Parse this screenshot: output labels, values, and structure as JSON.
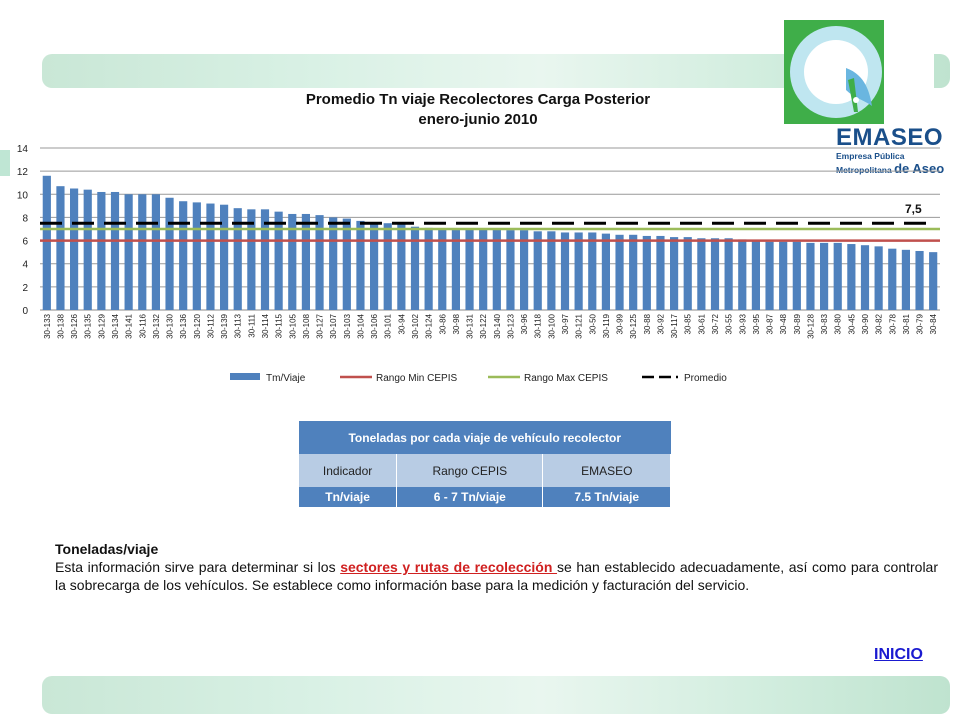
{
  "logo": {
    "name": "EMASEO",
    "sub1": "Empresa Pública",
    "sub2a": "Metropolitana",
    "sub2b": "de Aseo"
  },
  "chart_data": {
    "type": "bar",
    "title": "Promedio Tn viaje Recolectores Carga Posterior",
    "subtitle": "enero-junio 2010",
    "ylim": [
      0,
      14
    ],
    "yticks": [
      0,
      2,
      4,
      6,
      8,
      10,
      12,
      14
    ],
    "grid": true,
    "legend_position": "bottom",
    "categories": [
      "30-133",
      "30-138",
      "30-126",
      "30-135",
      "30-129",
      "30-134",
      "30-141",
      "30-116",
      "30-132",
      "30-130",
      "30-136",
      "30-120",
      "30-112",
      "30-139",
      "30-113",
      "30-111",
      "30-114",
      "30-115",
      "30-105",
      "30-108",
      "30-127",
      "30-107",
      "30-103",
      "30-104",
      "30-106",
      "30-101",
      "30-94",
      "30-102",
      "30-124",
      "30-86",
      "30-98",
      "30-131",
      "30-122",
      "30-140",
      "30-123",
      "30-96",
      "30-118",
      "30-100",
      "30-97",
      "30-121",
      "30-50",
      "30-119",
      "30-99",
      "30-125",
      "30-88",
      "30-92",
      "30-117",
      "30-85",
      "30-61",
      "30-72",
      "30-55",
      "30-93",
      "30-95",
      "30-87",
      "30-48",
      "30-89",
      "30-128",
      "30-83",
      "30-80",
      "30-45",
      "30-90",
      "30-82",
      "30-78",
      "30-81",
      "30-79",
      "30-84"
    ],
    "series": [
      {
        "name": "Tm/Viaje",
        "kind": "bar",
        "color": "#4f81bd",
        "values": [
          11.6,
          10.7,
          10.5,
          10.4,
          10.2,
          10.2,
          10.0,
          10.0,
          10.0,
          9.7,
          9.4,
          9.3,
          9.2,
          9.1,
          8.8,
          8.7,
          8.7,
          8.5,
          8.3,
          8.3,
          8.2,
          8.0,
          7.9,
          7.7,
          7.6,
          7.5,
          7.4,
          7.2,
          7.1,
          7.0,
          7.0,
          7.0,
          7.0,
          7.0,
          6.9,
          6.9,
          6.8,
          6.8,
          6.7,
          6.7,
          6.7,
          6.6,
          6.5,
          6.5,
          6.4,
          6.4,
          6.3,
          6.3,
          6.2,
          6.2,
          6.2,
          6.1,
          6.0,
          5.9,
          5.9,
          5.9,
          5.8,
          5.8,
          5.8,
          5.7,
          5.6,
          5.5,
          5.3,
          5.2,
          5.1,
          5.0
        ]
      },
      {
        "name": "Rango Min CEPIS",
        "kind": "line",
        "color": "#c0504d",
        "value": 6
      },
      {
        "name": "Rango Max CEPIS",
        "kind": "line",
        "color": "#9bbb59",
        "value": 7
      },
      {
        "name": "Promedio",
        "kind": "dashed",
        "color": "#000000",
        "value": 7.5
      }
    ],
    "annotations": [
      {
        "text": "7,5"
      }
    ]
  },
  "table": {
    "title": "Toneladas por cada viaje  de vehículo recolector",
    "headers": [
      "Indicador",
      "Rango CEPIS",
      "EMASEO"
    ],
    "row": [
      "Tn/viaje",
      "6 - 7 Tn/viaje",
      "7.5 Tn/viaje"
    ]
  },
  "text": {
    "title": "Toneladas/viaje",
    "p1": "Esta información sirve para determinar si los ",
    "link": "sectores y rutas de recolección ",
    "p2": "se han establecido adecuadamente, así como para controlar la sobrecarga de los vehículos. Se establece como información base para la medición y facturación del servicio."
  },
  "nav": {
    "inicio": "INICIO"
  }
}
